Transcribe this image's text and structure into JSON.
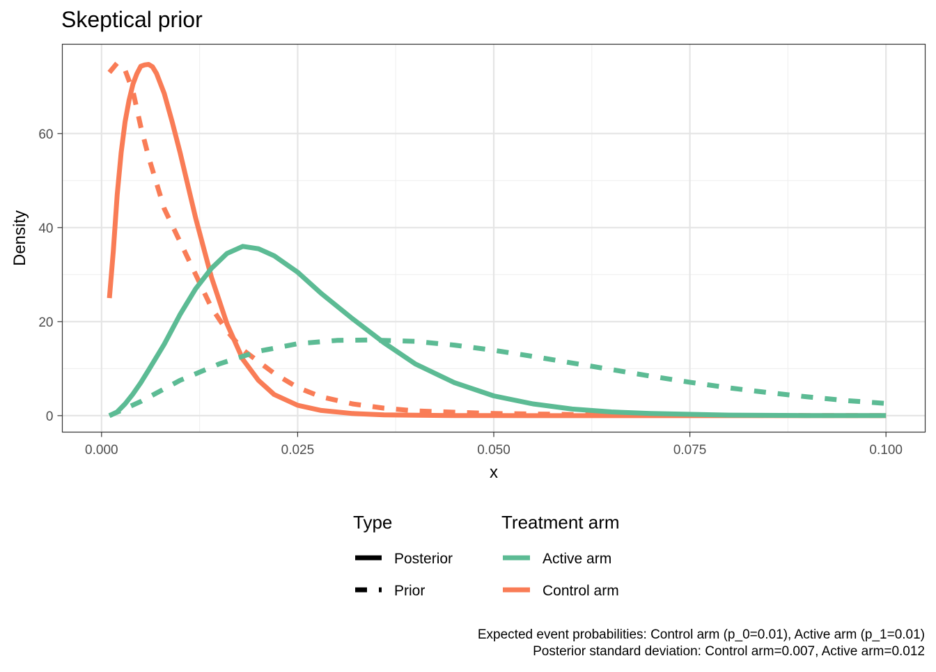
{
  "chart_data": {
    "type": "line",
    "title": "Skeptical prior",
    "xlabel": "x",
    "ylabel": "Density",
    "xlim": [
      -0.005,
      0.105
    ],
    "ylim": [
      -3.5,
      79
    ],
    "x_ticks": [
      0.0,
      0.025,
      0.05,
      0.075,
      0.1
    ],
    "x_tick_labels": [
      "0.000",
      "0.025",
      "0.050",
      "0.075",
      "0.100"
    ],
    "y_ticks": [
      0,
      20,
      40,
      60
    ],
    "y_tick_labels": [
      "0",
      "20",
      "40",
      "60"
    ],
    "grid": true,
    "legend_position": "bottom",
    "legends": [
      {
        "title": "Type",
        "entries": [
          {
            "label": "Posterior",
            "linetype": "solid"
          },
          {
            "label": "Prior",
            "linetype": "dashed"
          }
        ]
      },
      {
        "title": "Treatment arm",
        "entries": [
          {
            "label": "Active arm",
            "color": "#5CBB94"
          },
          {
            "label": "Control arm",
            "color": "#F97C56"
          }
        ]
      }
    ],
    "series": [
      {
        "arm": "Control arm",
        "type": "Prior",
        "color": "#F97C56",
        "linetype": "dashed",
        "x": [
          0.001,
          0.002,
          0.003,
          0.004,
          0.005,
          0.006,
          0.008,
          0.01,
          0.012,
          0.014,
          0.016,
          0.018,
          0.02,
          0.022,
          0.025,
          0.028,
          0.032,
          0.036,
          0.04,
          0.05,
          0.06,
          0.07,
          0.08,
          0.09,
          0.1
        ],
        "y": [
          73,
          75,
          73.5,
          69,
          61.5,
          55,
          44,
          37,
          30,
          23,
          18,
          14,
          11.5,
          9,
          6,
          4,
          2.5,
          1.6,
          1.0,
          0.45,
          0.25,
          0.12,
          0.06,
          0.03,
          0.01
        ]
      },
      {
        "arm": "Control arm",
        "type": "Posterior",
        "color": "#F97C56",
        "linetype": "solid",
        "x": [
          0.001,
          0.0015,
          0.002,
          0.0025,
          0.003,
          0.0035,
          0.004,
          0.0045,
          0.005,
          0.0055,
          0.006,
          0.0065,
          0.007,
          0.008,
          0.009,
          0.01,
          0.012,
          0.014,
          0.016,
          0.018,
          0.02,
          0.022,
          0.025,
          0.028,
          0.032,
          0.036,
          0.04,
          0.045,
          0.05,
          0.06,
          0.07,
          0.08,
          0.09,
          0.1
        ],
        "y": [
          25,
          35,
          47,
          56,
          62.5,
          67,
          70.5,
          72.7,
          74.3,
          74.6,
          74.7,
          74.2,
          72.8,
          68.5,
          62.5,
          56,
          42,
          29.5,
          19.5,
          12,
          7.5,
          4.5,
          2.2,
          1.1,
          0.45,
          0.18,
          0.08,
          0.03,
          0.01,
          0.002,
          0,
          0,
          0,
          0
        ]
      },
      {
        "arm": "Active arm",
        "type": "Prior",
        "color": "#5CBB94",
        "linetype": "dashed",
        "x": [
          0.001,
          0.005,
          0.01,
          0.015,
          0.02,
          0.025,
          0.03,
          0.034,
          0.04,
          0.045,
          0.05,
          0.055,
          0.06,
          0.065,
          0.07,
          0.075,
          0.08,
          0.085,
          0.09,
          0.095,
          0.1
        ],
        "y": [
          0,
          3,
          7.5,
          11,
          13.7,
          15.3,
          16.0,
          16.1,
          15.8,
          15.0,
          13.9,
          12.6,
          11.2,
          9.8,
          8.4,
          7.1,
          5.9,
          4.9,
          4.0,
          3.2,
          2.6
        ]
      },
      {
        "arm": "Active arm",
        "type": "Posterior",
        "color": "#5CBB94",
        "linetype": "solid",
        "x": [
          0.001,
          0.002,
          0.003,
          0.004,
          0.005,
          0.006,
          0.008,
          0.01,
          0.012,
          0.014,
          0.016,
          0.018,
          0.02,
          0.022,
          0.025,
          0.028,
          0.032,
          0.036,
          0.04,
          0.045,
          0.05,
          0.055,
          0.06,
          0.065,
          0.07,
          0.08,
          0.09,
          0.1
        ],
        "y": [
          0,
          0.8,
          2.5,
          4.6,
          7,
          9.7,
          15.2,
          21.5,
          27,
          31.3,
          34.5,
          36,
          35.5,
          34,
          30.5,
          26,
          20.6,
          15.5,
          11,
          7,
          4.2,
          2.5,
          1.4,
          0.8,
          0.45,
          0.12,
          0.03,
          0.01
        ]
      }
    ],
    "caption_lines": [
      "Expected event probabilities: Control arm (p_0=0.01), Active arm (p_1=0.01)",
      "Posterior standard deviation: Control arm=0.007, Active arm=0.012"
    ]
  }
}
